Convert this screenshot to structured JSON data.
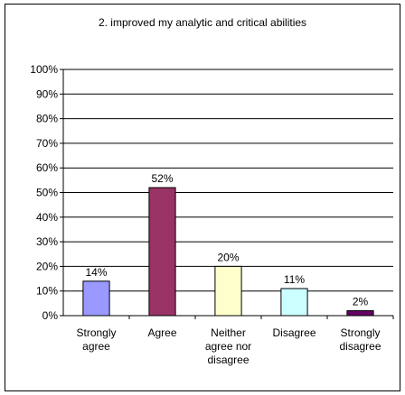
{
  "chart_data": {
    "type": "bar",
    "title": "2. improved my analytic and critical abilities",
    "categories": [
      [
        "Strongly",
        "agree"
      ],
      [
        "Agree"
      ],
      [
        "Neither",
        "agree nor",
        "disagree"
      ],
      [
        "Disagree"
      ],
      [
        "Strongly",
        "disagree"
      ]
    ],
    "values": [
      14,
      52,
      20,
      11,
      2
    ],
    "data_labels": [
      "14%",
      "52%",
      "20%",
      "11%",
      "2%"
    ],
    "bar_colors": [
      "#9999FF",
      "#993366",
      "#FFFFCC",
      "#CCFFFF",
      "#660066"
    ],
    "ylim": [
      0,
      100
    ],
    "yticks": [
      0,
      10,
      20,
      30,
      40,
      50,
      60,
      70,
      80,
      90,
      100
    ],
    "ytick_labels": [
      "0%",
      "10%",
      "20%",
      "30%",
      "40%",
      "50%",
      "60%",
      "70%",
      "80%",
      "90%",
      "100%"
    ],
    "grid": true,
    "xlabel": "",
    "ylabel": ""
  }
}
